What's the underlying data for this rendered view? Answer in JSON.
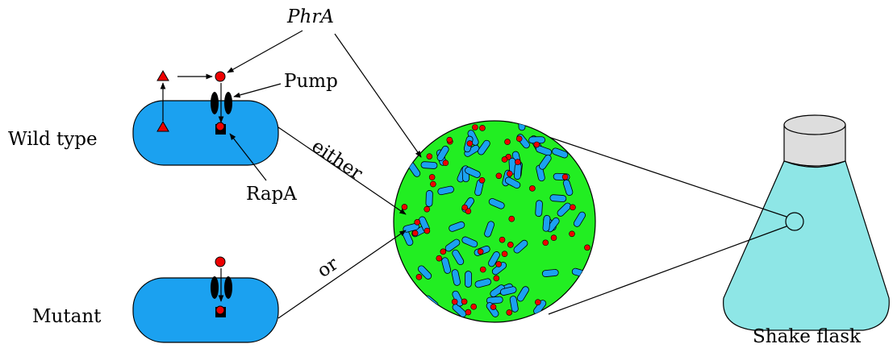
{
  "labels": {
    "phra": "PhrA",
    "pump": "Pump",
    "wild_type": "Wild type",
    "rapa": "RapA",
    "either": "either",
    "or": "or",
    "mutant": "Mutant",
    "shake_flask": "Shake flask"
  }
}
